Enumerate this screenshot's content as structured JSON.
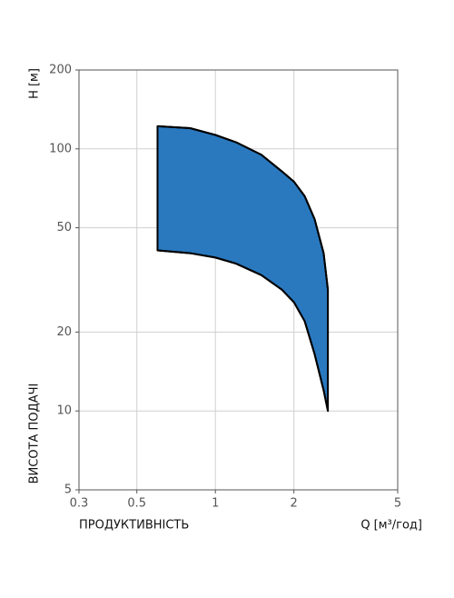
{
  "chart_data": {
    "type": "area-range",
    "y_label": "H [м]",
    "y_title": "ВИСОТА ПОДАЧІ",
    "x_title": "ПРОДУКТИВНІСТЬ",
    "x_label": "Q [м³/год]",
    "xlog": true,
    "ylog": true,
    "grid": true,
    "color": "#2a79bf",
    "xlim": [
      0.3,
      5
    ],
    "ylim": [
      5,
      200
    ],
    "xticks": [
      0.3,
      0.5,
      1,
      2,
      5
    ],
    "yticks": [
      5,
      10,
      20,
      50,
      100,
      200
    ],
    "series": [
      {
        "x": [
          0.6,
          0.8,
          1.0,
          1.2,
          1.5,
          1.8,
          2.0,
          2.2,
          2.4,
          2.6,
          2.7
        ],
        "values": [
          122,
          120,
          113,
          106,
          95,
          82,
          75,
          66,
          54,
          40,
          29
        ]
      },
      {
        "x": [
          0.6,
          0.8,
          1.0,
          1.2,
          1.5,
          1.8,
          2.0,
          2.2,
          2.4,
          2.6,
          2.7
        ],
        "values": [
          41,
          40,
          38.5,
          36.5,
          33,
          29,
          26,
          22,
          16.5,
          12,
          10
        ]
      }
    ]
  }
}
